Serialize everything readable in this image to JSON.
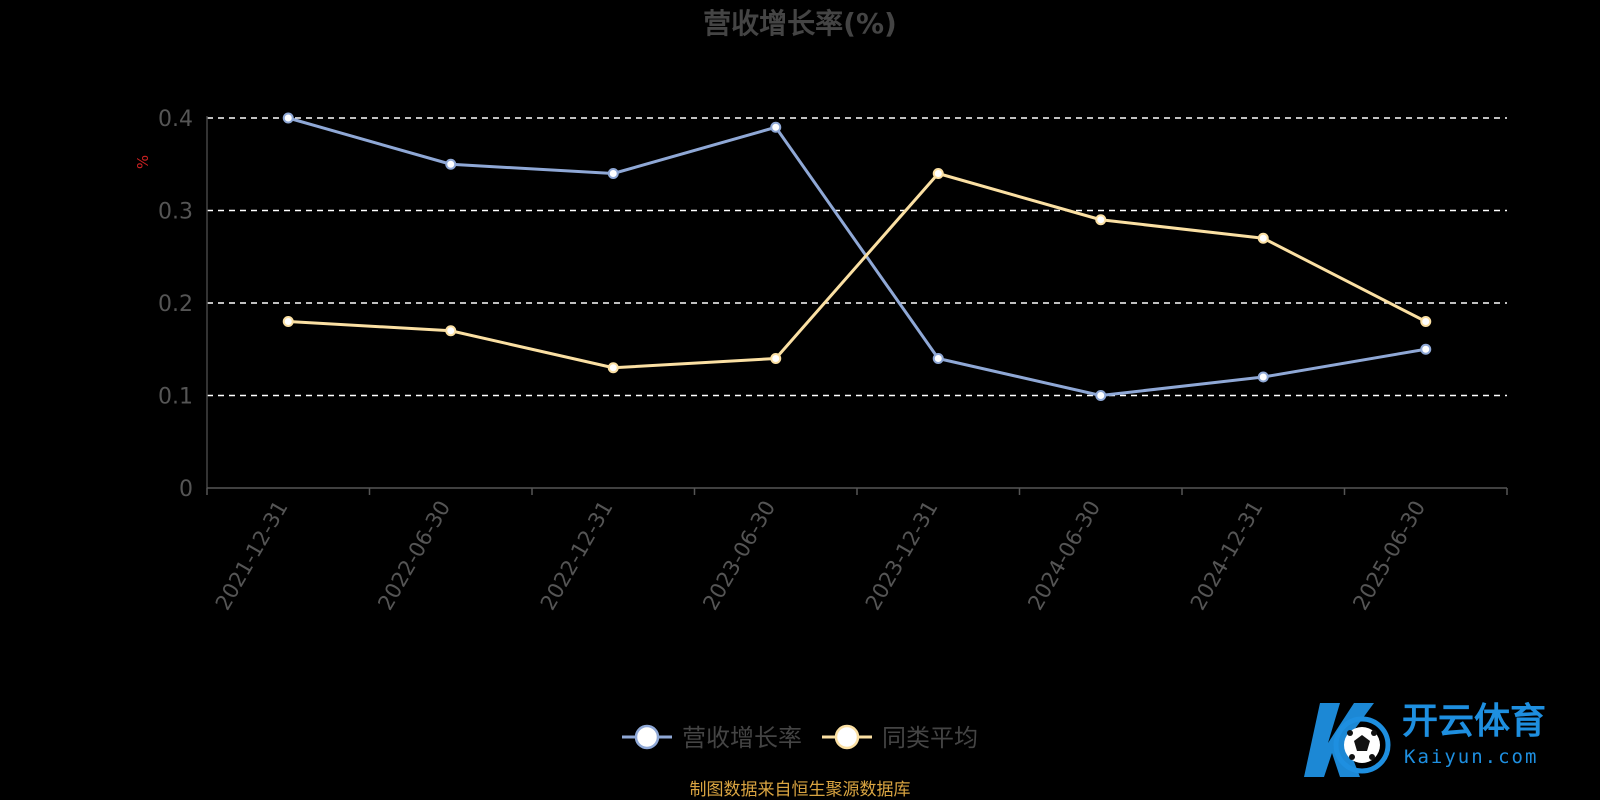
{
  "chart_data": {
    "type": "line",
    "title": "营收增长率(%)",
    "ylabel": "%",
    "categories": [
      "2021-12-31",
      "2022-06-30",
      "2022-12-31",
      "2023-06-30",
      "2023-12-31",
      "2024-06-30",
      "2024-12-31",
      "2025-06-30"
    ],
    "ylim": [
      0,
      0.4
    ],
    "yticks": [
      "0",
      "0.1",
      "0.2",
      "0.3",
      "0.4"
    ],
    "series": [
      {
        "name": "营收增长率",
        "values": [
          0.4,
          0.35,
          0.34,
          0.39,
          0.14,
          0.1,
          0.12,
          0.15
        ],
        "color": "#8fa8d6"
      },
      {
        "name": "同类平均",
        "values": [
          0.18,
          0.17,
          0.13,
          0.14,
          0.34,
          0.29,
          0.27,
          0.18
        ],
        "color": "#fbe0a3"
      }
    ],
    "grid": true,
    "legend_position": "bottom-center"
  },
  "source_note": "制图数据来自恒生聚源数据库",
  "watermark": {
    "brand_cn": "开云体育",
    "brand_en": "Kaiyun.com",
    "logo_letter": "K"
  },
  "colors": {
    "background": "#000000",
    "title": "#444444",
    "axis_text": "#555555",
    "ylabel": "#cc2222",
    "grid": "#ffffff",
    "source_note": "#d9a441",
    "watermark_blue": "#1e8fe0"
  }
}
